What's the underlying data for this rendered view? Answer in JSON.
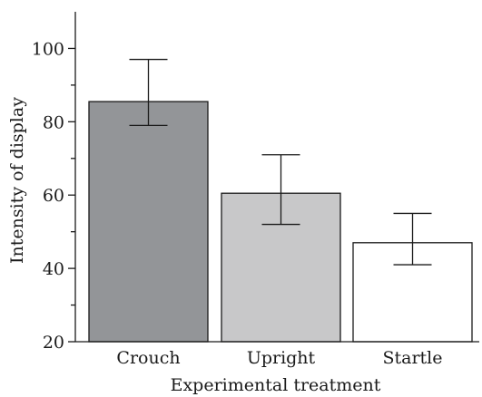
{
  "chart_data": {
    "type": "bar",
    "xlabel": "Experimental treatment",
    "ylabel": "Intensity of display",
    "categories": [
      "Crouch",
      "Upright",
      "Startle"
    ],
    "values": [
      85.5,
      60.5,
      47
    ],
    "error_upper": [
      97,
      71,
      55
    ],
    "error_lower": [
      79,
      52,
      41
    ],
    "bar_colors": [
      "#939598",
      "#c8c8c9",
      "#ffffff"
    ],
    "ylim": [
      20,
      110
    ],
    "yticks_major": [
      20,
      40,
      60,
      80,
      100
    ],
    "yticks_minor": [
      30,
      50,
      70,
      90
    ],
    "grid": false,
    "legend": "none"
  }
}
